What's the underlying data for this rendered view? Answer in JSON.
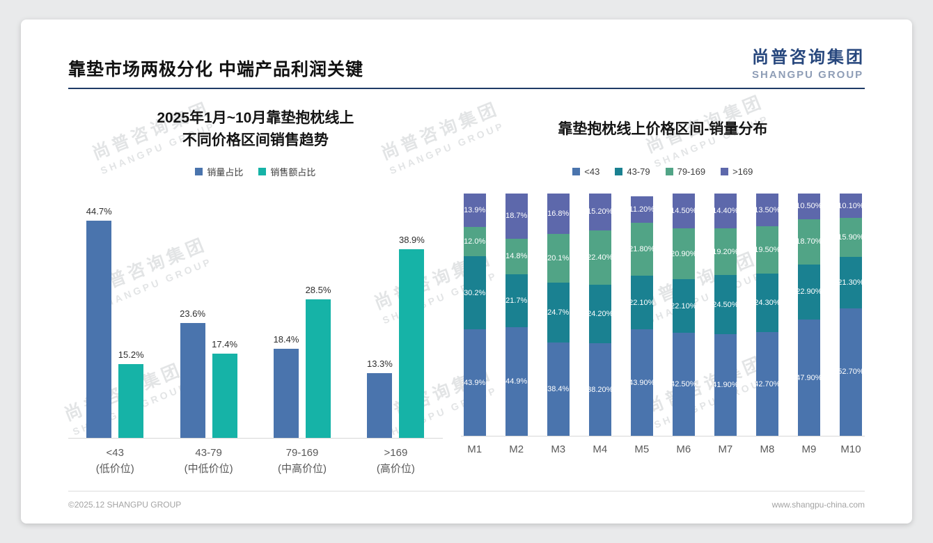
{
  "page": {
    "title": "靠垫市场两极分化 中端产品利润关键",
    "logo": {
      "cn": "尚普咨询集团",
      "en": "SHANGPU GROUP"
    },
    "watermark": {
      "cn": "尚普咨询集团",
      "en": "SHANGPU GROUP"
    },
    "footer": {
      "left": "©2025.12 SHANGPU GROUP",
      "right": "www.shangpu-china.com"
    }
  },
  "chart_data": [
    {
      "type": "bar",
      "title": "2025年1月~10月靠垫抱枕线上 不同价格区间销售趋势",
      "title_lines": [
        "2025年1月~10月靠垫抱枕线上",
        "不同价格区间销售趋势"
      ],
      "categories": [
        "<43",
        "43-79",
        "79-169",
        ">169"
      ],
      "category_subs": [
        "(低价位)",
        "(中低价位)",
        "(中高价位)",
        "(高价位)"
      ],
      "series": [
        {
          "name": "销量占比",
          "color": "#4a74ad",
          "values": [
            "44.7",
            "23.6",
            "18.4",
            "13.3"
          ]
        },
        {
          "name": "销售额占比",
          "color": "#16b3a7",
          "values": [
            "15.2",
            "17.4",
            "28.5",
            "38.9"
          ]
        }
      ],
      "value_suffix": "%",
      "ylim": [
        0,
        48
      ],
      "legend_position": "top",
      "grid": false
    },
    {
      "type": "stacked-bar",
      "title": "靠垫抱枕线上价格区间-销量分布",
      "categories": [
        "M1",
        "M2",
        "M3",
        "M4",
        "M5",
        "M6",
        "M7",
        "M8",
        "M9",
        "M10"
      ],
      "series": [
        {
          "name": "<43",
          "color": "#4a74ad",
          "values": [
            "43.9",
            "44.9",
            "38.4",
            "38.20",
            "43.90",
            "42.50",
            "41.90",
            "42.70",
            "47.90",
            "52.70"
          ]
        },
        {
          "name": "43-79",
          "color": "#1a8191",
          "values": [
            "30.2",
            "21.7",
            "24.7",
            "24.20",
            "22.10",
            "22.10",
            "24.50",
            "24.30",
            "22.90",
            "21.30"
          ]
        },
        {
          "name": "79-169",
          "color": "#51a486",
          "values": [
            "12.0",
            "14.8",
            "20.1",
            "22.40",
            "21.80",
            "20.90",
            "19.20",
            "19.50",
            "18.70",
            "15.90"
          ]
        },
        {
          "name": ">169",
          "color": "#5d68ab",
          "values": [
            "13.9",
            "18.7",
            "16.8",
            "15.20",
            "11.20",
            "14.50",
            "14.40",
            "13.50",
            "10.50",
            "10.10"
          ]
        }
      ],
      "value_suffix": "%",
      "ylim": [
        0,
        100
      ],
      "legend_position": "top",
      "grid": false
    }
  ]
}
